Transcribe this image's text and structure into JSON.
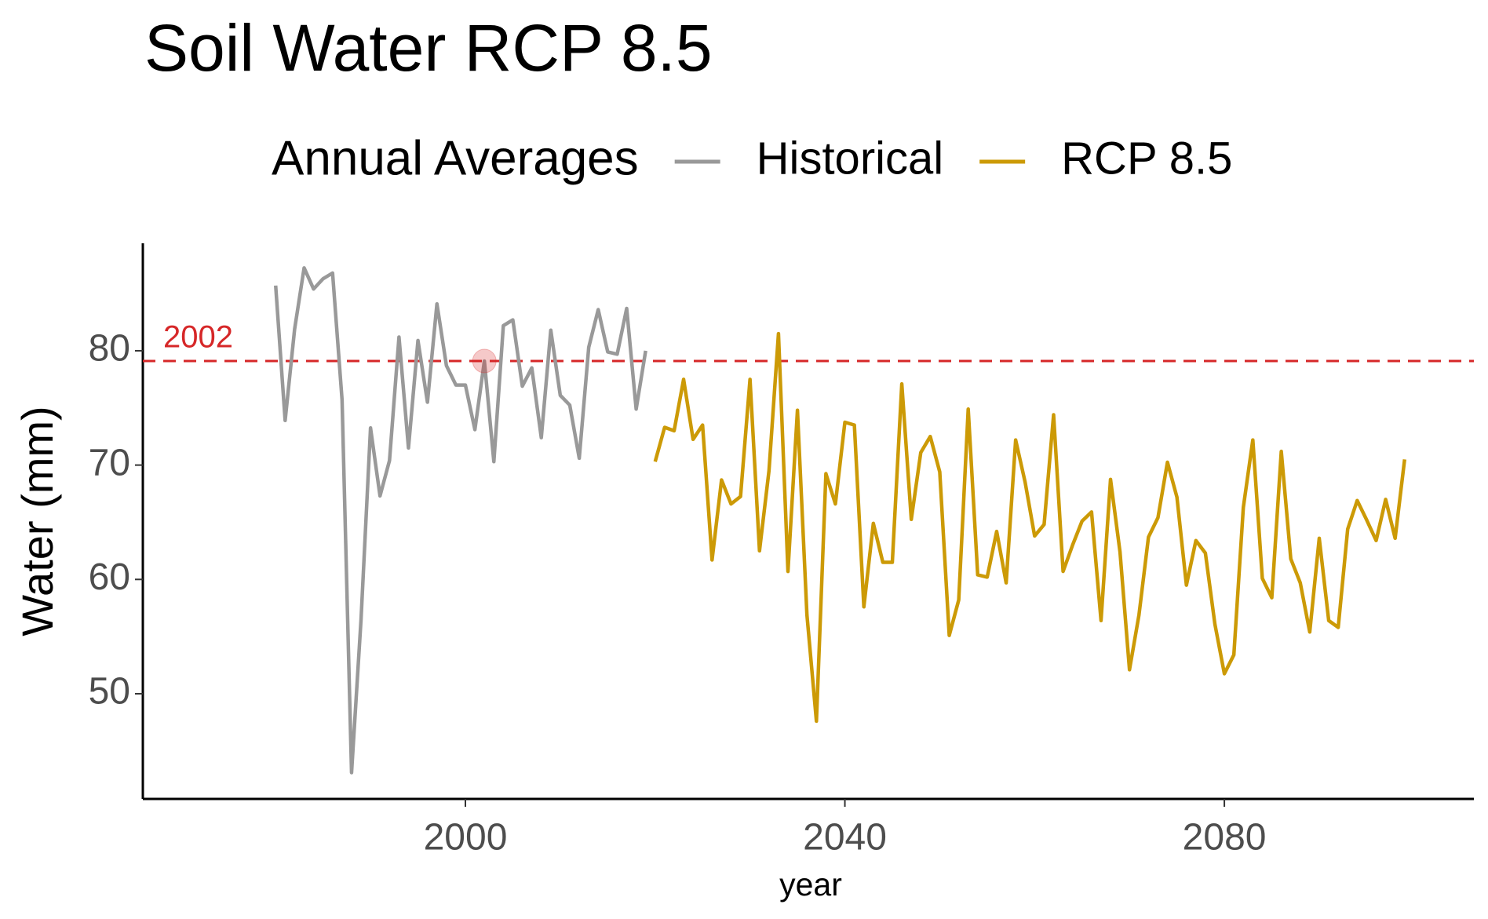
{
  "chart_data": {
    "type": "line",
    "title": "Soil Water RCP 8.5",
    "legend_title": "Annual Averages",
    "legend_position": "top",
    "x_label": "year",
    "y_label": "Water (mm)",
    "x": [
      1980,
      1981,
      1982,
      1983,
      1984,
      1985,
      1986,
      1987,
      1988,
      1989,
      1990,
      1991,
      1992,
      1993,
      1994,
      1995,
      1996,
      1997,
      1998,
      1999,
      2000,
      2001,
      2002,
      2003,
      2004,
      2005,
      2006,
      2007,
      2008,
      2009,
      2010,
      2011,
      2012,
      2013,
      2014,
      2015,
      2016,
      2017,
      2018,
      2019,
      2020,
      2021,
      2022,
      2023,
      2024,
      2025,
      2026,
      2027,
      2028,
      2029,
      2030,
      2031,
      2032,
      2033,
      2034,
      2035,
      2036,
      2037,
      2038,
      2039,
      2040,
      2041,
      2042,
      2043,
      2044,
      2045,
      2046,
      2047,
      2048,
      2049,
      2050,
      2051,
      2052,
      2053,
      2054,
      2055,
      2056,
      2057,
      2058,
      2059,
      2060,
      2061,
      2062,
      2063,
      2064,
      2065,
      2066,
      2067,
      2068,
      2069,
      2070,
      2071,
      2072,
      2073,
      2074,
      2075,
      2076,
      2077,
      2078,
      2079,
      2080,
      2081,
      2082,
      2083,
      2084,
      2085,
      2086,
      2087,
      2088,
      2089,
      2090,
      2091,
      2092,
      2093,
      2094,
      2095,
      2096,
      2097,
      2098,
      2099
    ],
    "series": [
      {
        "name": "Historical",
        "color": "#999999",
        "values": [
          85.7,
          73.9,
          81.9,
          87.25,
          85.4,
          86.3,
          86.8,
          75.7,
          43.1,
          56.5,
          73.25,
          67.3,
          70.4,
          81.2,
          71.5,
          80.9,
          75.5,
          84.1,
          78.7,
          77.0,
          77.0,
          73.1,
          79.1,
          70.3,
          82.2,
          82.7,
          76.9,
          78.5,
          72.4,
          81.8,
          76.1,
          75.25,
          70.6,
          80.3,
          83.6,
          79.9,
          79.7,
          83.7,
          74.9,
          80.0,
          null,
          null,
          null,
          null,
          null,
          null,
          null,
          null,
          null,
          null,
          null,
          null,
          null,
          null,
          null,
          null,
          null,
          null,
          null,
          null,
          null,
          null,
          null,
          null,
          null,
          null,
          null,
          null,
          null,
          null,
          null,
          null,
          null,
          null,
          null,
          null,
          null,
          null,
          null,
          null,
          null,
          null,
          null,
          null,
          null,
          null,
          null,
          null,
          null,
          null,
          null,
          null,
          null,
          null,
          null,
          null,
          null,
          null,
          null,
          null,
          null,
          null,
          null,
          null,
          null,
          null,
          null,
          null,
          null,
          null,
          null,
          null,
          null,
          null,
          null,
          null,
          null,
          null,
          null,
          null
        ]
      },
      {
        "name": "RCP 8.5",
        "color": "#CC9A06",
        "values": [
          null,
          null,
          null,
          null,
          null,
          null,
          null,
          null,
          null,
          null,
          null,
          null,
          null,
          null,
          null,
          null,
          null,
          null,
          null,
          null,
          null,
          null,
          null,
          null,
          null,
          null,
          null,
          null,
          null,
          null,
          null,
          null,
          null,
          null,
          null,
          null,
          null,
          null,
          null,
          null,
          70.3,
          73.3,
          73.0,
          77.5,
          72.25,
          73.5,
          61.7,
          68.7,
          66.6,
          67.25,
          77.5,
          62.5,
          69.5,
          81.5,
          60.7,
          74.8,
          56.9,
          47.6,
          69.25,
          66.6,
          73.75,
          73.5,
          57.6,
          64.9,
          61.5,
          61.5,
          77.1,
          65.25,
          71.1,
          72.5,
          69.4,
          55.1,
          58.2,
          74.9,
          60.4,
          60.2,
          64.2,
          59.7,
          72.2,
          68.5,
          63.8,
          64.8,
          74.4,
          60.7,
          63.0,
          65.1,
          65.9,
          56.4,
          68.75,
          62.4,
          52.1,
          56.9,
          63.7,
          65.4,
          70.25,
          67.2,
          59.5,
          63.4,
          62.3,
          56.1,
          51.75,
          53.4,
          66.3,
          72.2,
          60.1,
          58.4,
          71.2,
          61.8,
          59.7,
          55.4,
          63.6,
          56.4,
          55.8,
          64.4,
          66.9,
          65.2,
          63.4,
          67.0,
          63.6,
          70.5
        ]
      }
    ],
    "reference_line": {
      "value": 79.1,
      "label": "2002",
      "color": "#d62728"
    },
    "highlight_index": 22,
    "xlim": [
      1966,
      2106.3
    ],
    "ylim": [
      40.8,
      89.4
    ],
    "xticks": [
      2000,
      2040,
      2080
    ],
    "yticks": [
      50,
      60,
      70,
      80
    ],
    "grid": false
  }
}
